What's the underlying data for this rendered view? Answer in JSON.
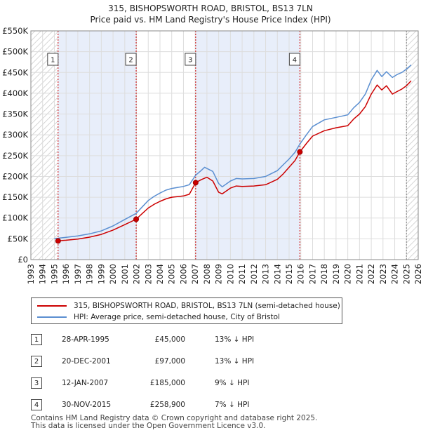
{
  "chart_data": {
    "type": "line",
    "title": "315, BISHOPSWORTH ROAD, BRISTOL, BS13 7LN",
    "subtitle": "Price paid vs. HM Land Registry's House Price Index (HPI)",
    "xlim": [
      1993,
      2026
    ],
    "ylim": [
      0,
      550000
    ],
    "x_ticks": [
      1993,
      1994,
      1995,
      1996,
      1997,
      1998,
      1999,
      2000,
      2001,
      2002,
      2003,
      2004,
      2005,
      2006,
      2007,
      2008,
      2009,
      2010,
      2011,
      2012,
      2013,
      2014,
      2015,
      2016,
      2017,
      2018,
      2019,
      2020,
      2021,
      2022,
      2023,
      2024,
      2025,
      2026
    ],
    "x_tick_labels": [
      "1993",
      "1994",
      "1995",
      "1996",
      "1997",
      "1998",
      "1999",
      "2000",
      "2001",
      "2002",
      "2003",
      "2004",
      "2005",
      "2006",
      "2007",
      "2008",
      "2009",
      "2010",
      "2011",
      "2012",
      "2013",
      "2014",
      "2015",
      "2016",
      "2017",
      "2018",
      "2019",
      "2020",
      "2021",
      "2022",
      "2023",
      "2024",
      "2025",
      "2026"
    ],
    "y_ticks": [
      0,
      50000,
      100000,
      150000,
      200000,
      250000,
      300000,
      350000,
      400000,
      450000,
      500000,
      550000
    ],
    "y_tick_labels": [
      "£0",
      "£50K",
      "£100K",
      "£150K",
      "£200K",
      "£250K",
      "£300K",
      "£350K",
      "£400K",
      "£450K",
      "£500K",
      "£550K"
    ],
    "hatch_before": 1995.32,
    "hatch_after": 2025.0,
    "shade_ranges": [
      [
        1995.32,
        2001.97
      ],
      [
        2007.04,
        2015.92
      ]
    ],
    "series": [
      {
        "name": "315, BISHOPSWORTH ROAD, BRISTOL, BS13 7LN (semi-detached house)",
        "color": "#cc0000",
        "x": [
          1995.32,
          1996.0,
          1997.0,
          1998.0,
          1999.0,
          2000.0,
          2001.0,
          2001.97,
          2002.5,
          2003.0,
          2003.5,
          2004.0,
          2004.5,
          2005.0,
          2006.0,
          2006.5,
          2007.04,
          2007.5,
          2008.0,
          2008.5,
          2009.0,
          2009.3,
          2010.0,
          2010.5,
          2011.0,
          2012.0,
          2013.0,
          2014.0,
          2014.5,
          2015.0,
          2015.5,
          2015.92,
          2016.5,
          2017.0,
          2018.0,
          2019.0,
          2020.0,
          2020.5,
          2021.0,
          2021.5,
          2022.0,
          2022.5,
          2022.9,
          2023.3,
          2023.8,
          2024.2,
          2024.6,
          2025.0,
          2025.4
        ],
        "values": [
          45000,
          46500,
          49500,
          54000,
          60500,
          71000,
          84000,
          97000,
          111000,
          124000,
          133000,
          140000,
          146000,
          150000,
          153000,
          157000,
          185000,
          192000,
          198000,
          189000,
          162000,
          158000,
          172000,
          177000,
          176000,
          177000,
          180000,
          193000,
          206000,
          222000,
          238000,
          258900,
          280000,
          297000,
          310000,
          317000,
          322000,
          338000,
          350000,
          368000,
          398000,
          420000,
          408000,
          418000,
          398000,
          404000,
          410000,
          418000,
          430000
        ]
      },
      {
        "name": "HPI: Average price, semi-detached house, City of Bristol",
        "color": "#5b8fd1",
        "x": [
          1995.0,
          1995.32,
          1996.0,
          1997.0,
          1998.0,
          1999.0,
          2000.0,
          2001.0,
          2001.97,
          2002.5,
          2003.0,
          2003.5,
          2004.0,
          2004.5,
          2005.0,
          2006.0,
          2006.5,
          2007.04,
          2007.5,
          2007.8,
          2008.5,
          2009.0,
          2009.3,
          2010.0,
          2010.5,
          2011.0,
          2012.0,
          2013.0,
          2014.0,
          2014.5,
          2015.0,
          2015.5,
          2015.92,
          2016.5,
          2017.0,
          2018.0,
          2019.0,
          2020.0,
          2020.5,
          2021.0,
          2021.5,
          2022.0,
          2022.5,
          2022.9,
          2023.3,
          2023.8,
          2024.2,
          2024.6,
          2025.0,
          2025.4
        ],
        "values": [
          51000,
          51500,
          53500,
          57000,
          62000,
          69000,
          81000,
          96500,
          111000,
          127000,
          142000,
          152000,
          160000,
          167000,
          171000,
          176000,
          180000,
          203000,
          214000,
          222000,
          212000,
          183000,
          175000,
          189000,
          195000,
          194000,
          195000,
          200000,
          214000,
          228000,
          242000,
          258000,
          278000,
          301000,
          320000,
          336000,
          342000,
          348000,
          365000,
          378000,
          398000,
          432000,
          455000,
          440000,
          452000,
          438000,
          445000,
          450000,
          458000,
          468000
        ]
      }
    ],
    "markers": [
      {
        "id": "1",
        "x": 1995.32,
        "value": 45000
      },
      {
        "id": "2",
        "x": 2001.97,
        "value": 97000
      },
      {
        "id": "3",
        "x": 2007.04,
        "value": 185000
      },
      {
        "id": "4",
        "x": 2015.92,
        "value": 258900
      }
    ]
  },
  "legend": {
    "items": [
      {
        "label": "315, BISHOPSWORTH ROAD, BRISTOL, BS13 7LN (semi-detached house)",
        "color": "#cc0000"
      },
      {
        "label": "HPI: Average price, semi-detached house, City of Bristol",
        "color": "#5b8fd1"
      }
    ]
  },
  "transactions": [
    {
      "num": "1",
      "date": "28-APR-1995",
      "price": "£45,000",
      "hpi": "13% ↓ HPI"
    },
    {
      "num": "2",
      "date": "20-DEC-2001",
      "price": "£97,000",
      "hpi": "13% ↓ HPI"
    },
    {
      "num": "3",
      "date": "12-JAN-2007",
      "price": "£185,000",
      "hpi": "9% ↓ HPI"
    },
    {
      "num": "4",
      "date": "30-NOV-2015",
      "price": "£258,900",
      "hpi": "7% ↓ HPI"
    }
  ],
  "footer": {
    "line1": "Contains HM Land Registry data © Crown copyright and database right 2025.",
    "line2": "This data is licensed under the Open Government Licence v3.0."
  }
}
